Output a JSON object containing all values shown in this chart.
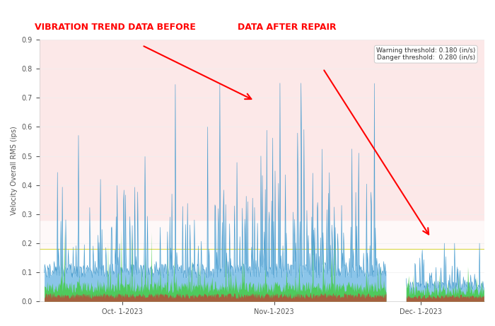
{
  "title_before": "VIBRATION TREND DATA BEFORE",
  "title_after": "DATA AFTER REPAIR",
  "ylabel": "Velocity Overall RMS (ips)",
  "warning_threshold": 0.18,
  "danger_threshold": 0.28,
  "ylim": [
    0,
    0.9
  ],
  "background_color": "#ffffff",
  "danger_zone_color": "#fce8e8",
  "warning_line_color": "#cccc00",
  "x_ticks_labels": [
    "Oct- 1-2023",
    "Nov-1-2023",
    "Dec- 1-2023"
  ],
  "x_ticks_pos": [
    0.18,
    0.52,
    0.82
  ],
  "threshold_text": "Warning threshold: 0.180 (in/s)\nDanger threshold:  0.280 (in/s)"
}
